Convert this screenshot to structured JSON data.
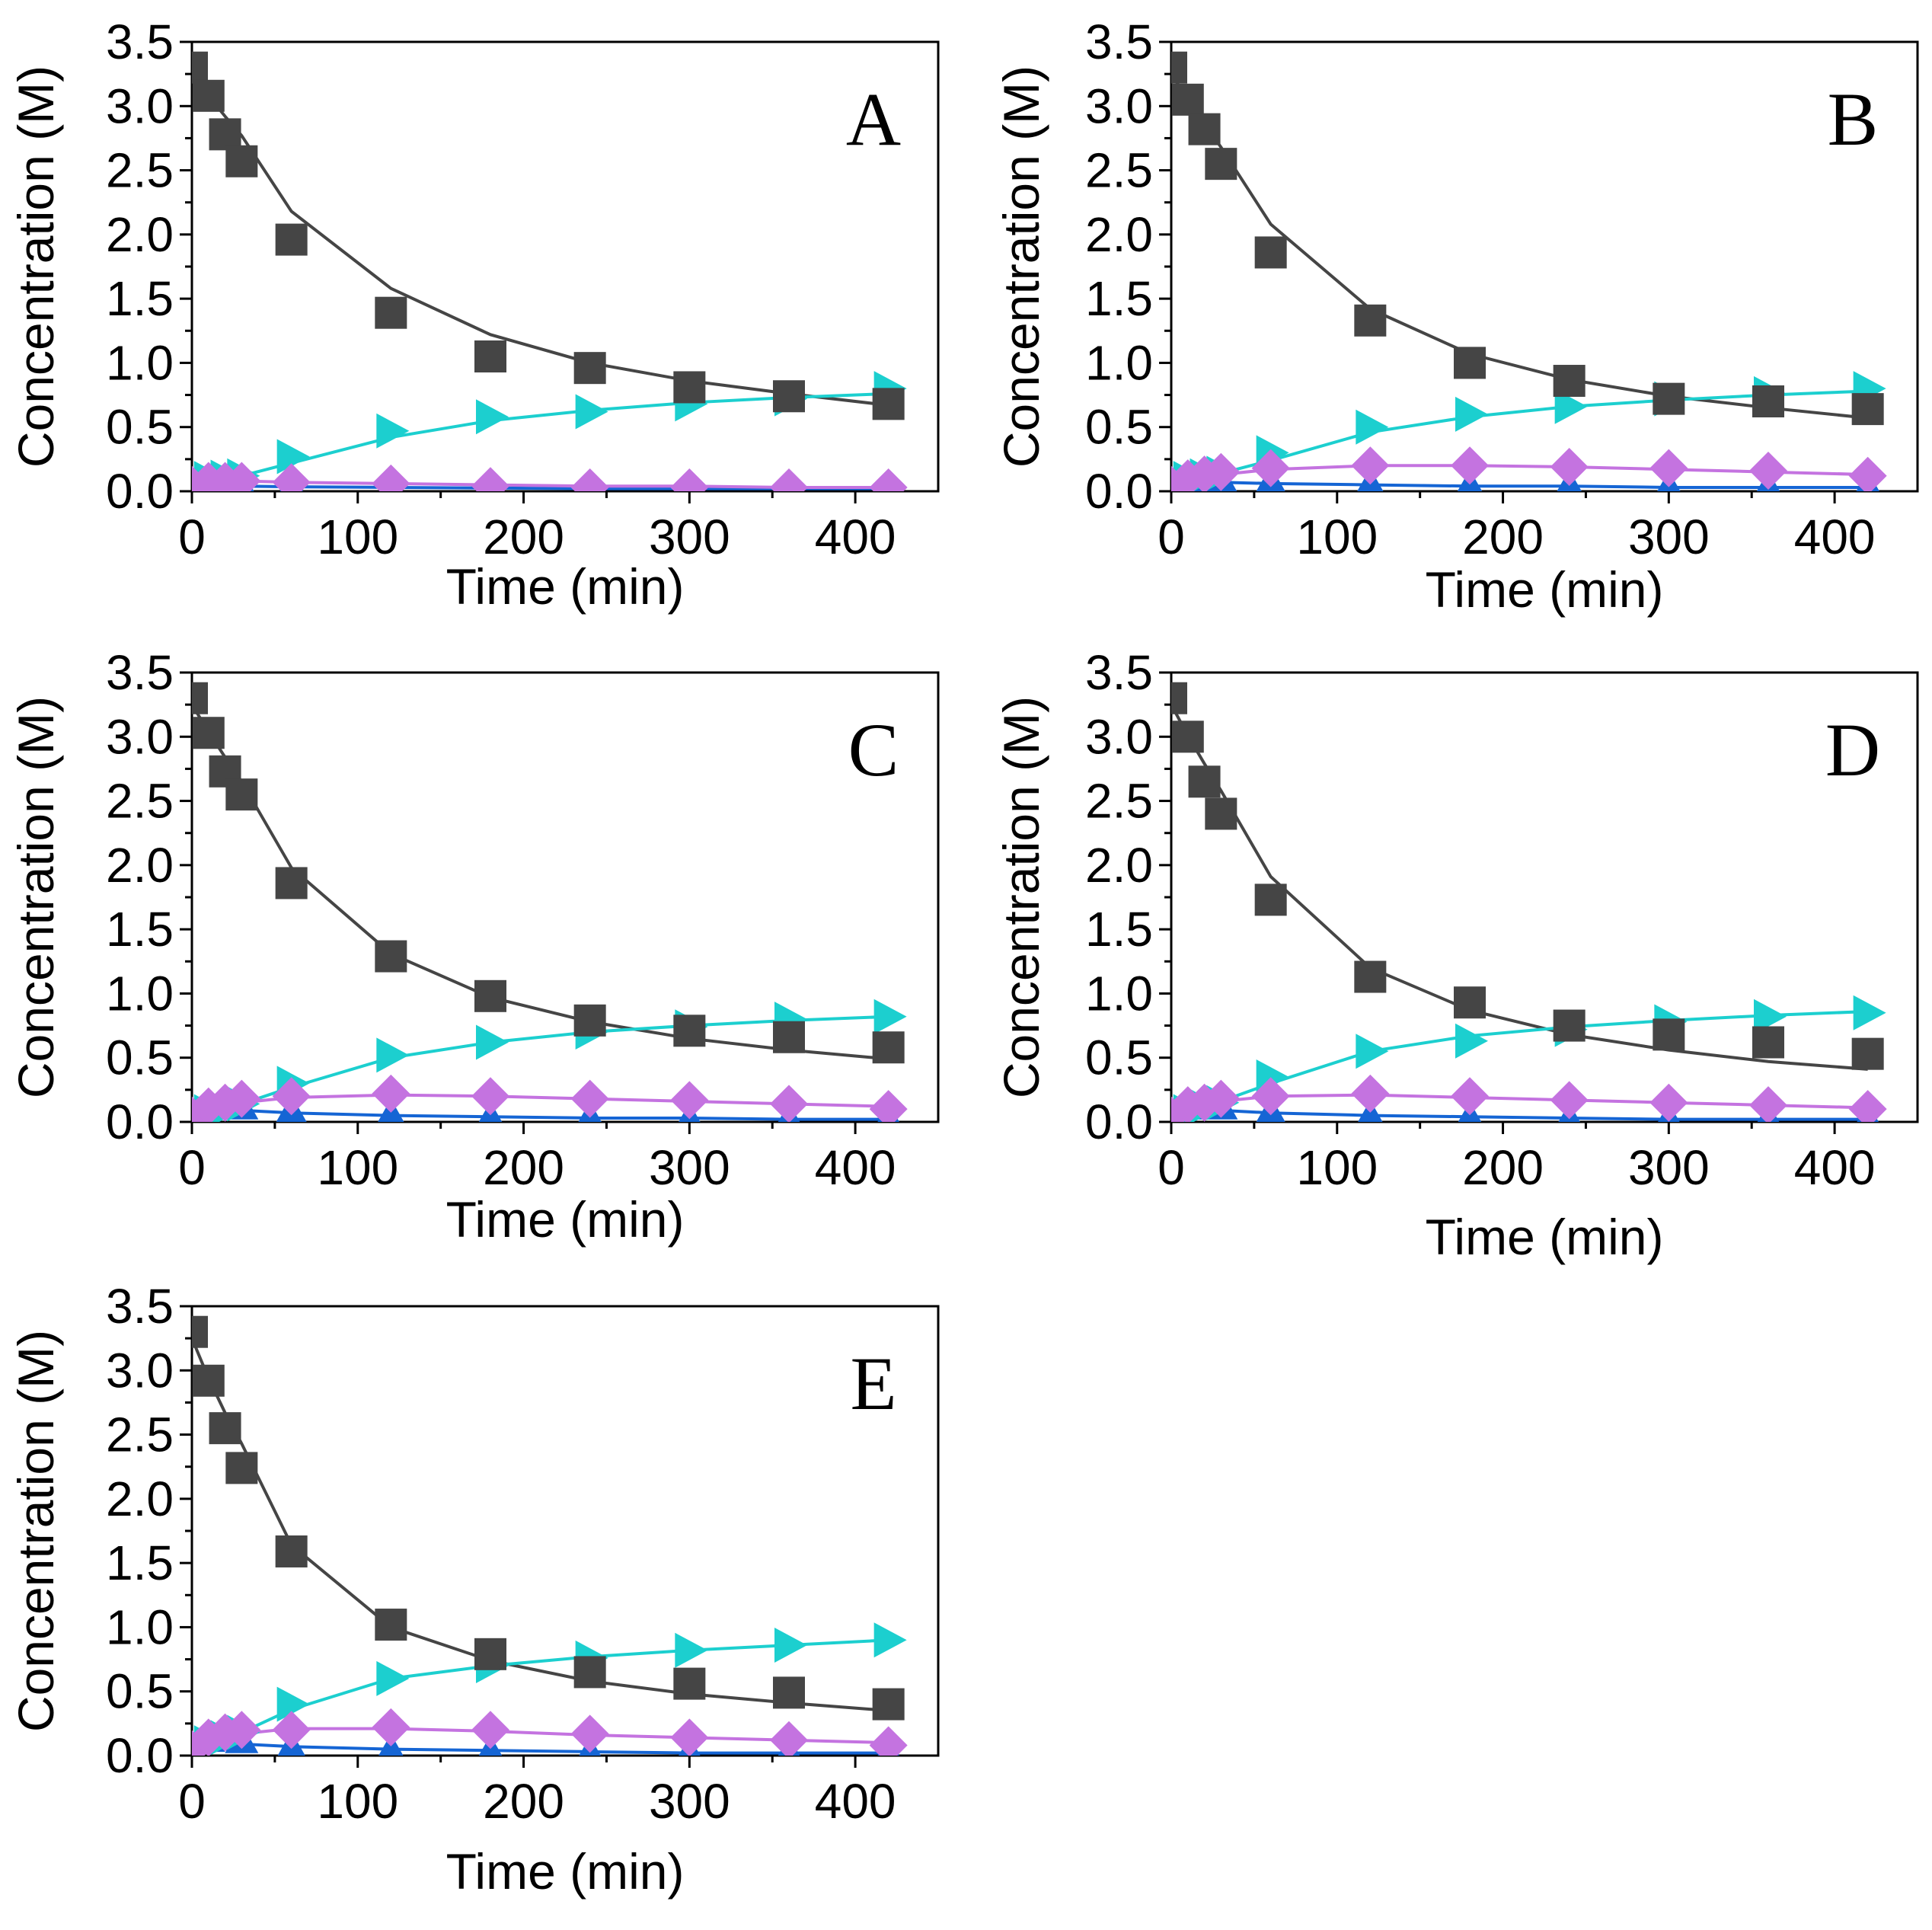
{
  "colors": {
    "series_a": "#454545",
    "series_b": "#1565d4",
    "series_c": "#c473e0",
    "series_d": "#1ccfcf"
  },
  "chart_data": [
    {
      "type": "scatter",
      "panel": "A",
      "xlabel": "Time (min)",
      "ylabel": "Concentration (M)",
      "xlim": [
        0,
        450
      ],
      "ylim": [
        0,
        3.5
      ],
      "xticks": [
        "0",
        "100",
        "200",
        "300",
        "400"
      ],
      "yticks": [
        "0.0",
        "0.5",
        "1.0",
        "1.5",
        "2.0",
        "2.5",
        "3.0",
        "3.5"
      ],
      "x": [
        0,
        10,
        20,
        30,
        60,
        120,
        180,
        240,
        300,
        360,
        420
      ],
      "series": [
        {
          "name": "square",
          "marker": "square",
          "color": "#454545",
          "values": [
            3.3,
            3.08,
            2.78,
            2.57,
            1.96,
            1.39,
            1.05,
            0.96,
            0.81,
            0.74,
            0.68
          ],
          "fit": [
            3.25,
            3.08,
            2.92,
            2.77,
            2.18,
            1.58,
            1.22,
            1.0,
            0.86,
            0.76,
            0.67
          ]
        },
        {
          "name": "triangle-up",
          "marker": "triangle-up",
          "color": "#1565d4",
          "values": [
            0.05,
            0.06,
            0.05,
            0.04,
            0.03,
            0.02,
            0.02,
            0.02,
            0.02,
            0.02,
            0.02
          ],
          "fit": [
            0.05,
            0.05,
            0.045,
            0.04,
            0.035,
            0.03,
            0.025,
            0.02,
            0.02,
            0.02,
            0.02
          ]
        },
        {
          "name": "diamond",
          "marker": "diamond",
          "color": "#c473e0",
          "values": [
            0.05,
            0.08,
            0.08,
            0.08,
            0.07,
            0.06,
            0.04,
            0.03,
            0.03,
            0.03,
            0.03
          ],
          "fit": [
            0.05,
            0.07,
            0.08,
            0.08,
            0.07,
            0.06,
            0.05,
            0.04,
            0.04,
            0.03,
            0.03
          ]
        },
        {
          "name": "triangle-right",
          "marker": "triangle-right",
          "color": "#1ccfcf",
          "values": [
            0.05,
            0.1,
            0.11,
            0.12,
            0.27,
            0.47,
            0.58,
            0.62,
            0.68,
            0.72,
            0.8
          ],
          "fit": [
            0.05,
            0.08,
            0.1,
            0.12,
            0.22,
            0.42,
            0.55,
            0.63,
            0.69,
            0.73,
            0.76
          ]
        }
      ]
    },
    {
      "type": "scatter",
      "panel": "B",
      "xlabel": "Time (min)",
      "ylabel": "Concentration (M)",
      "xlim": [
        0,
        450
      ],
      "ylim": [
        0,
        3.5
      ],
      "xticks": [
        "0",
        "100",
        "200",
        "300",
        "400"
      ],
      "yticks": [
        "0.0",
        "0.5",
        "1.0",
        "1.5",
        "2.0",
        "2.5",
        "3.0",
        "3.5"
      ],
      "x": [
        0,
        10,
        20,
        30,
        60,
        120,
        180,
        240,
        300,
        360,
        420
      ],
      "series": [
        {
          "name": "square",
          "marker": "square",
          "color": "#454545",
          "values": [
            3.3,
            3.05,
            2.82,
            2.55,
            1.86,
            1.33,
            1.0,
            0.86,
            0.72,
            0.7,
            0.64
          ],
          "fit": [
            3.25,
            3.05,
            2.86,
            2.68,
            2.08,
            1.42,
            1.07,
            0.87,
            0.74,
            0.65,
            0.57
          ]
        },
        {
          "name": "triangle-up",
          "marker": "triangle-up",
          "color": "#1565d4",
          "values": [
            0.05,
            0.1,
            0.1,
            0.09,
            0.07,
            0.05,
            0.04,
            0.04,
            0.03,
            0.03,
            0.03
          ],
          "fit": [
            0.05,
            0.08,
            0.08,
            0.07,
            0.06,
            0.05,
            0.04,
            0.04,
            0.03,
            0.03,
            0.03
          ]
        },
        {
          "name": "diamond",
          "marker": "diamond",
          "color": "#c473e0",
          "values": [
            0.05,
            0.1,
            0.13,
            0.15,
            0.18,
            0.2,
            0.2,
            0.19,
            0.18,
            0.16,
            0.12
          ],
          "fit": [
            0.05,
            0.08,
            0.11,
            0.13,
            0.17,
            0.2,
            0.2,
            0.19,
            0.17,
            0.15,
            0.13
          ]
        },
        {
          "name": "triangle-right",
          "marker": "triangle-right",
          "color": "#1ccfcf",
          "values": [
            0.05,
            0.1,
            0.12,
            0.14,
            0.3,
            0.5,
            0.6,
            0.66,
            0.72,
            0.76,
            0.8
          ],
          "fit": [
            0.05,
            0.08,
            0.11,
            0.14,
            0.24,
            0.46,
            0.58,
            0.66,
            0.71,
            0.75,
            0.78
          ]
        }
      ]
    },
    {
      "type": "scatter",
      "panel": "C",
      "xlabel": "Time (min)",
      "ylabel": "Concentration (M)",
      "xlim": [
        0,
        450
      ],
      "ylim": [
        0,
        3.5
      ],
      "xticks": [
        "0",
        "100",
        "200",
        "300",
        "400"
      ],
      "yticks": [
        "0.0",
        "0.5",
        "1.0",
        "1.5",
        "2.0",
        "2.5",
        "3.0",
        "3.5"
      ],
      "x": [
        0,
        10,
        20,
        30,
        60,
        120,
        180,
        240,
        300,
        360,
        420
      ],
      "series": [
        {
          "name": "square",
          "marker": "square",
          "color": "#454545",
          "values": [
            3.3,
            3.03,
            2.73,
            2.55,
            1.86,
            1.29,
            0.98,
            0.79,
            0.71,
            0.66,
            0.58
          ],
          "fit": [
            3.25,
            3.04,
            2.84,
            2.65,
            1.98,
            1.31,
            0.97,
            0.78,
            0.65,
            0.56,
            0.49
          ]
        },
        {
          "name": "triangle-up",
          "marker": "triangle-up",
          "color": "#1565d4",
          "values": [
            0.05,
            0.12,
            0.13,
            0.12,
            0.08,
            0.05,
            0.03,
            0.03,
            0.02,
            0.02,
            0.02
          ],
          "fit": [
            0.05,
            0.1,
            0.1,
            0.09,
            0.07,
            0.05,
            0.04,
            0.03,
            0.03,
            0.02,
            0.02
          ]
        },
        {
          "name": "diamond",
          "marker": "diamond",
          "color": "#c473e0",
          "values": [
            0.05,
            0.12,
            0.15,
            0.18,
            0.2,
            0.22,
            0.2,
            0.18,
            0.17,
            0.14,
            0.1
          ],
          "fit": [
            0.05,
            0.09,
            0.12,
            0.15,
            0.19,
            0.21,
            0.2,
            0.18,
            0.16,
            0.14,
            0.12
          ]
        },
        {
          "name": "triangle-right",
          "marker": "triangle-right",
          "color": "#1ccfcf",
          "values": [
            0.05,
            0.08,
            0.1,
            0.14,
            0.3,
            0.52,
            0.62,
            0.7,
            0.74,
            0.8,
            0.82
          ],
          "fit": [
            0.05,
            0.08,
            0.11,
            0.14,
            0.27,
            0.5,
            0.62,
            0.7,
            0.75,
            0.79,
            0.82
          ]
        }
      ]
    },
    {
      "type": "scatter",
      "panel": "D",
      "xlabel": "Time (min)",
      "ylabel": "Concentration (M)",
      "xlim": [
        0,
        450
      ],
      "ylim": [
        0,
        3.5
      ],
      "xticks": [
        "0",
        "100",
        "200",
        "300",
        "400"
      ],
      "yticks": [
        "0.0",
        "0.5",
        "1.0",
        "1.5",
        "2.0",
        "2.5",
        "3.0",
        "3.5"
      ],
      "x": [
        0,
        10,
        20,
        30,
        60,
        120,
        180,
        240,
        300,
        360,
        420
      ],
      "series": [
        {
          "name": "square",
          "marker": "square",
          "color": "#454545",
          "values": [
            3.3,
            3.0,
            2.65,
            2.4,
            1.73,
            1.13,
            0.93,
            0.75,
            0.68,
            0.62,
            0.53
          ],
          "fit": [
            3.25,
            3.01,
            2.79,
            2.58,
            1.91,
            1.2,
            0.87,
            0.68,
            0.56,
            0.47,
            0.41
          ]
        },
        {
          "name": "triangle-up",
          "marker": "triangle-up",
          "color": "#1565d4",
          "values": [
            0.05,
            0.12,
            0.13,
            0.12,
            0.07,
            0.04,
            0.03,
            0.02,
            0.02,
            0.02,
            0.02
          ],
          "fit": [
            0.05,
            0.1,
            0.1,
            0.09,
            0.07,
            0.05,
            0.04,
            0.03,
            0.02,
            0.02,
            0.02
          ]
        },
        {
          "name": "diamond",
          "marker": "diamond",
          "color": "#c473e0",
          "values": [
            0.05,
            0.13,
            0.15,
            0.18,
            0.2,
            0.22,
            0.2,
            0.17,
            0.15,
            0.13,
            0.1
          ],
          "fit": [
            0.05,
            0.09,
            0.13,
            0.16,
            0.2,
            0.21,
            0.19,
            0.17,
            0.15,
            0.13,
            0.11
          ]
        },
        {
          "name": "triangle-right",
          "marker": "triangle-right",
          "color": "#1ccfcf",
          "values": [
            0.05,
            0.08,
            0.12,
            0.15,
            0.35,
            0.55,
            0.63,
            0.72,
            0.78,
            0.82,
            0.85
          ],
          "fit": [
            0.05,
            0.09,
            0.12,
            0.16,
            0.3,
            0.55,
            0.67,
            0.74,
            0.79,
            0.83,
            0.86
          ]
        }
      ]
    },
    {
      "type": "scatter",
      "panel": "E",
      "xlabel": "Time (min)",
      "ylabel": "Concentration (M)",
      "xlim": [
        0,
        450
      ],
      "ylim": [
        0,
        3.5
      ],
      "xticks": [
        "0",
        "100",
        "200",
        "300",
        "400"
      ],
      "yticks": [
        "0.0",
        "0.5",
        "1.0",
        "1.5",
        "2.0",
        "2.5",
        "3.0",
        "3.5"
      ],
      "x": [
        0,
        10,
        20,
        30,
        60,
        120,
        180,
        240,
        300,
        360,
        420
      ],
      "series": [
        {
          "name": "square",
          "marker": "square",
          "color": "#454545",
          "values": [
            3.3,
            2.92,
            2.55,
            2.24,
            1.59,
            1.02,
            0.79,
            0.65,
            0.56,
            0.49,
            0.4
          ],
          "fit": [
            3.25,
            2.94,
            2.67,
            2.43,
            1.64,
            1.0,
            0.74,
            0.58,
            0.48,
            0.41,
            0.35
          ]
        },
        {
          "name": "triangle-up",
          "marker": "triangle-up",
          "color": "#1565d4",
          "values": [
            0.05,
            0.13,
            0.14,
            0.12,
            0.06,
            0.04,
            0.03,
            0.02,
            0.02,
            0.02,
            0.02
          ],
          "fit": [
            0.05,
            0.1,
            0.1,
            0.09,
            0.07,
            0.05,
            0.04,
            0.03,
            0.02,
            0.02,
            0.02
          ]
        },
        {
          "name": "diamond",
          "marker": "diamond",
          "color": "#c473e0",
          "values": [
            0.05,
            0.14,
            0.18,
            0.2,
            0.2,
            0.22,
            0.2,
            0.17,
            0.14,
            0.12,
            0.08
          ],
          "fit": [
            0.05,
            0.1,
            0.14,
            0.17,
            0.21,
            0.21,
            0.19,
            0.16,
            0.14,
            0.12,
            0.1
          ]
        },
        {
          "name": "triangle-right",
          "marker": "triangle-right",
          "color": "#1ccfcf",
          "values": [
            0.05,
            0.1,
            0.14,
            0.18,
            0.4,
            0.6,
            0.7,
            0.76,
            0.82,
            0.86,
            0.9
          ],
          "fit": [
            0.05,
            0.1,
            0.14,
            0.18,
            0.36,
            0.6,
            0.7,
            0.77,
            0.82,
            0.86,
            0.9
          ]
        }
      ]
    }
  ]
}
